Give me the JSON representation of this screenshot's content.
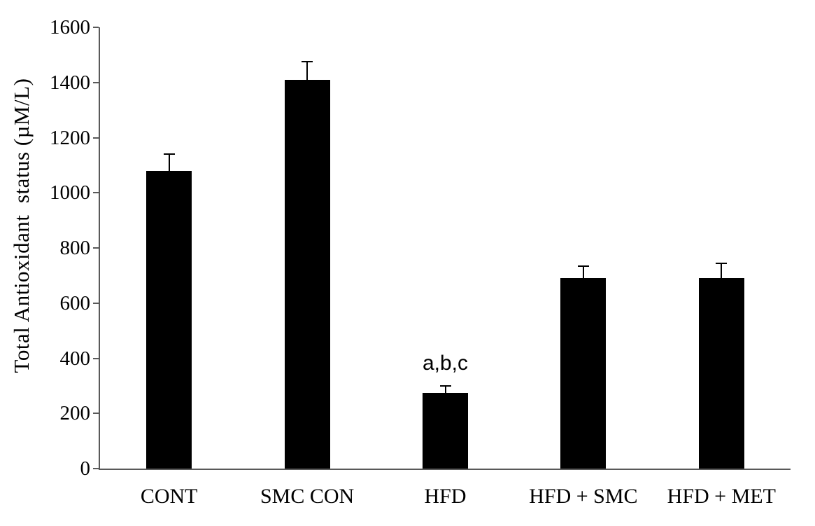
{
  "chart_data": {
    "type": "bar",
    "title": "",
    "xlabel": "",
    "ylabel": "Total Antioxidant  status (µM/L)",
    "categories": [
      "CONT",
      "SMC CON",
      "HFD",
      "HFD + SMC",
      "HFD + MET"
    ],
    "values": [
      1080,
      1410,
      275,
      690,
      690
    ],
    "errors": [
      60,
      65,
      25,
      45,
      55
    ],
    "annotations": [
      {
        "category": "HFD",
        "text": "a,b,c"
      }
    ],
    "ylim": [
      0,
      1600
    ],
    "ytick_step": 200,
    "ytick_labels": [
      "0",
      "200",
      "400",
      "600",
      "800",
      "1000",
      "1200",
      "1400",
      "1600"
    ],
    "grid": false,
    "legend": null,
    "bar_color": "#000000",
    "error_bar_color": "#000000",
    "axis_color": "#595959",
    "text_color": "#000000"
  }
}
